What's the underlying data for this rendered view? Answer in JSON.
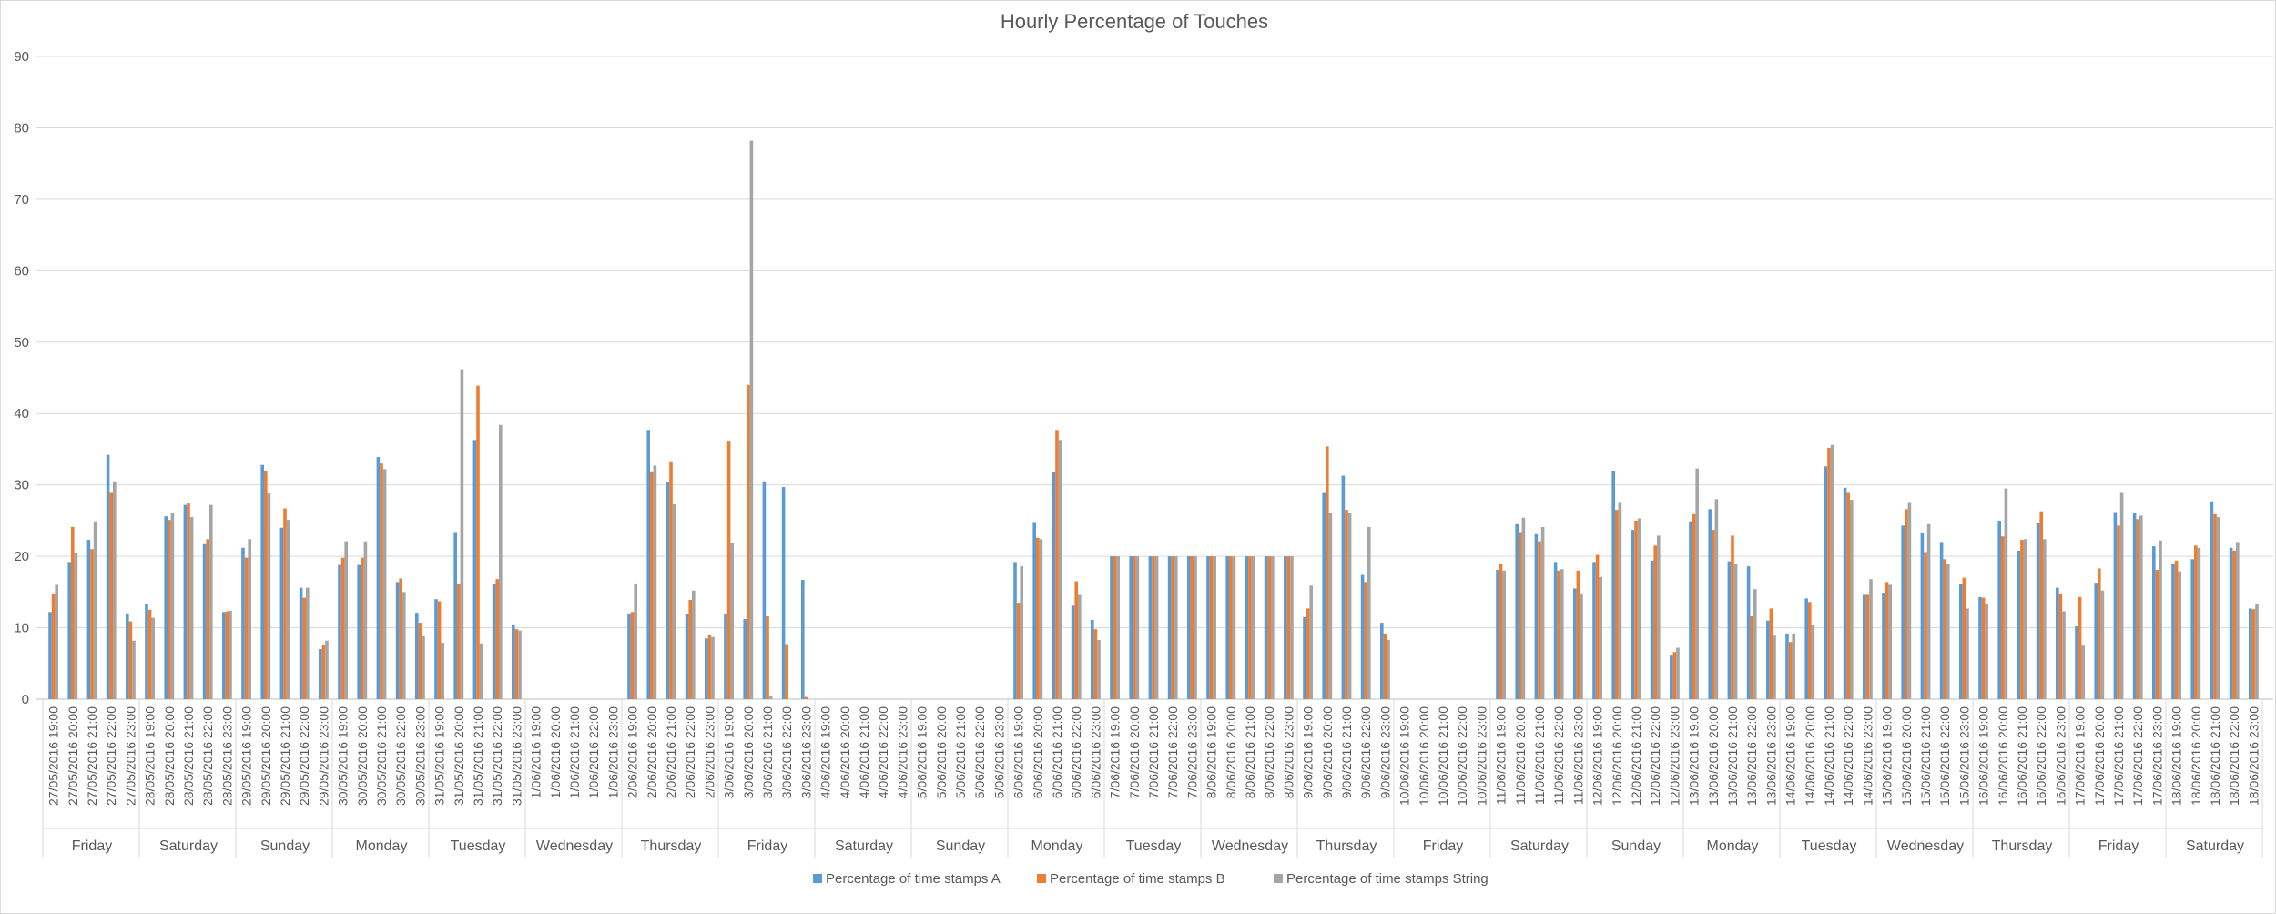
{
  "chart_data": {
    "type": "bar",
    "title": "Hourly Percentage of Touches",
    "xlabel": "",
    "ylabel": "",
    "ylim": [
      0,
      90
    ],
    "yticks": [
      0,
      10,
      20,
      30,
      40,
      50,
      60,
      70,
      80,
      90
    ],
    "grid": true,
    "legend_position": "bottom",
    "groups": [
      {
        "day": "Friday",
        "date": "27/05/2016"
      },
      {
        "day": "Saturday",
        "date": "28/05/2016"
      },
      {
        "day": "Sunday",
        "date": "29/05/2016"
      },
      {
        "day": "Monday",
        "date": "30/05/2016"
      },
      {
        "day": "Tuesday",
        "date": "31/05/2016"
      },
      {
        "day": "Wednesday",
        "date": "1/06/2016"
      },
      {
        "day": "Thursday",
        "date": "2/06/2016"
      },
      {
        "day": "Friday",
        "date": "3/06/2016"
      },
      {
        "day": "Saturday",
        "date": "4/06/2016"
      },
      {
        "day": "Sunday",
        "date": "5/06/2016"
      },
      {
        "day": "Monday",
        "date": "6/06/2016"
      },
      {
        "day": "Tuesday",
        "date": "7/06/2016"
      },
      {
        "day": "Wednesday",
        "date": "8/06/2016"
      },
      {
        "day": "Thursday",
        "date": "9/06/2016"
      },
      {
        "day": "Friday",
        "date": "10/06/2016"
      },
      {
        "day": "Saturday",
        "date": "11/06/2016"
      },
      {
        "day": "Sunday",
        "date": "12/06/2016"
      },
      {
        "day": "Monday",
        "date": "13/06/2016"
      },
      {
        "day": "Tuesday",
        "date": "14/06/2016"
      },
      {
        "day": "Wednesday",
        "date": "15/06/2016"
      },
      {
        "day": "Thursday",
        "date": "16/06/2016"
      },
      {
        "day": "Friday",
        "date": "17/06/2016"
      },
      {
        "day": "Saturday",
        "date": "18/06/2016"
      }
    ],
    "hours": [
      "19:00",
      "20:00",
      "21:00",
      "22:00",
      "23:00"
    ],
    "series": [
      {
        "name": "Percentage of time stamps A",
        "color": "#5B9BD5",
        "values": [
          [
            12.2,
            19.2,
            22.3,
            34.2,
            12.0
          ],
          [
            13.3,
            25.6,
            27.2,
            21.7,
            12.2
          ],
          [
            21.2,
            32.8,
            24.0,
            15.6,
            7.0
          ],
          [
            18.8,
            18.8,
            33.9,
            16.4,
            12.1
          ],
          [
            14.0,
            23.4,
            36.3,
            16.1,
            10.4
          ],
          [
            0,
            0,
            0,
            0,
            0
          ],
          [
            12.0,
            37.7,
            30.4,
            11.9,
            8.5
          ],
          [
            12.0,
            11.2,
            30.5,
            29.7,
            16.7
          ],
          [
            0,
            0,
            0,
            0,
            0
          ],
          [
            0,
            0,
            0,
            0,
            0
          ],
          [
            19.2,
            24.8,
            31.8,
            13.1,
            11.1
          ],
          [
            20.0,
            20.0,
            20.0,
            20.0,
            20.0
          ],
          [
            20.0,
            20.0,
            20.0,
            20.0,
            20.0
          ],
          [
            11.5,
            29.0,
            31.3,
            17.4,
            10.7
          ],
          [
            0,
            0,
            0,
            0,
            0
          ],
          [
            18.1,
            24.5,
            23.1,
            19.2,
            15.5
          ],
          [
            19.2,
            32.0,
            23.7,
            19.4,
            6.1
          ],
          [
            24.9,
            26.6,
            19.3,
            18.6,
            11.0
          ],
          [
            9.2,
            14.1,
            32.6,
            29.6,
            14.6
          ],
          [
            14.9,
            24.3,
            23.2,
            22.0,
            16.1
          ],
          [
            14.3,
            25.0,
            20.8,
            24.6,
            15.6
          ],
          [
            10.2,
            16.3,
            26.2,
            26.1,
            21.4
          ],
          [
            19.0,
            19.6,
            27.7,
            21.2,
            12.7
          ]
        ]
      },
      {
        "name": "Percentage of time stamps B",
        "color": "#ED7D31",
        "values": [
          [
            14.8,
            24.1,
            21.0,
            29.0,
            10.9
          ],
          [
            12.5,
            25.1,
            27.4,
            22.4,
            12.3
          ],
          [
            19.8,
            32.0,
            26.7,
            14.2,
            7.6
          ],
          [
            19.8,
            19.8,
            33.0,
            16.9,
            10.7
          ],
          [
            13.7,
            16.2,
            43.9,
            16.8,
            9.8
          ],
          [
            0,
            0,
            0,
            0,
            0
          ],
          [
            12.2,
            31.9,
            33.3,
            13.9,
            9.0
          ],
          [
            36.2,
            44.0,
            11.6,
            7.7,
            0.3
          ],
          [
            0,
            0,
            0,
            0,
            0
          ],
          [
            0,
            0,
            0,
            0,
            0
          ],
          [
            13.5,
            22.6,
            37.7,
            16.5,
            9.8
          ],
          [
            20.0,
            20.0,
            20.0,
            20.0,
            20.0
          ],
          [
            20.0,
            20.0,
            20.0,
            20.0,
            20.0
          ],
          [
            12.7,
            35.4,
            26.5,
            16.4,
            9.2
          ],
          [
            0,
            0,
            0,
            0,
            0
          ],
          [
            18.9,
            23.4,
            22.1,
            18.0,
            18.0
          ],
          [
            20.2,
            26.5,
            25.0,
            21.5,
            6.6
          ],
          [
            25.9,
            23.7,
            22.9,
            11.6,
            12.7
          ],
          [
            8.0,
            13.6,
            35.2,
            29.0,
            14.6
          ],
          [
            16.4,
            26.6,
            20.6,
            19.6,
            17.0
          ],
          [
            14.2,
            22.8,
            22.3,
            26.3,
            14.8
          ],
          [
            14.3,
            18.3,
            24.3,
            25.2,
            18.1
          ],
          [
            19.4,
            21.5,
            25.9,
            20.8,
            12.6
          ]
        ]
      },
      {
        "name": "Percentage of time stamps String",
        "color": "#A5A5A5",
        "values": [
          [
            16.0,
            20.5,
            24.9,
            30.5,
            8.2
          ],
          [
            11.4,
            26.0,
            25.5,
            27.2,
            12.4
          ],
          [
            22.4,
            28.8,
            25.1,
            15.6,
            8.2
          ],
          [
            22.1,
            22.1,
            32.2,
            15.0,
            8.8
          ],
          [
            7.9,
            46.2,
            7.8,
            38.4,
            9.6
          ],
          [
            0,
            0,
            0,
            0,
            0
          ],
          [
            16.2,
            32.7,
            27.3,
            15.2,
            8.7
          ],
          [
            21.9,
            78.2,
            0.4,
            0,
            0
          ],
          [
            0,
            0,
            0,
            0,
            0
          ],
          [
            0,
            0,
            0,
            0,
            0
          ],
          [
            18.6,
            22.4,
            36.3,
            14.6,
            8.3
          ],
          [
            20.0,
            20.0,
            20.0,
            20.0,
            20.0
          ],
          [
            20.0,
            20.0,
            20.0,
            20.0,
            20.0
          ],
          [
            15.9,
            26.0,
            26.1,
            24.1,
            8.3
          ],
          [
            0,
            0,
            0,
            0,
            0
          ],
          [
            18.0,
            25.4,
            24.1,
            18.2,
            14.8
          ],
          [
            17.1,
            27.6,
            25.3,
            22.9,
            7.2
          ],
          [
            32.3,
            28.0,
            19.0,
            15.4,
            8.9
          ],
          [
            9.2,
            10.4,
            35.6,
            27.9,
            16.8
          ],
          [
            16.0,
            27.6,
            24.5,
            18.9,
            12.7
          ],
          [
            13.4,
            29.5,
            22.4,
            22.4,
            12.3
          ],
          [
            7.5,
            15.2,
            29.0,
            25.7,
            22.2
          ],
          [
            17.9,
            21.2,
            25.5,
            22.0,
            13.3
          ]
        ]
      }
    ]
  }
}
